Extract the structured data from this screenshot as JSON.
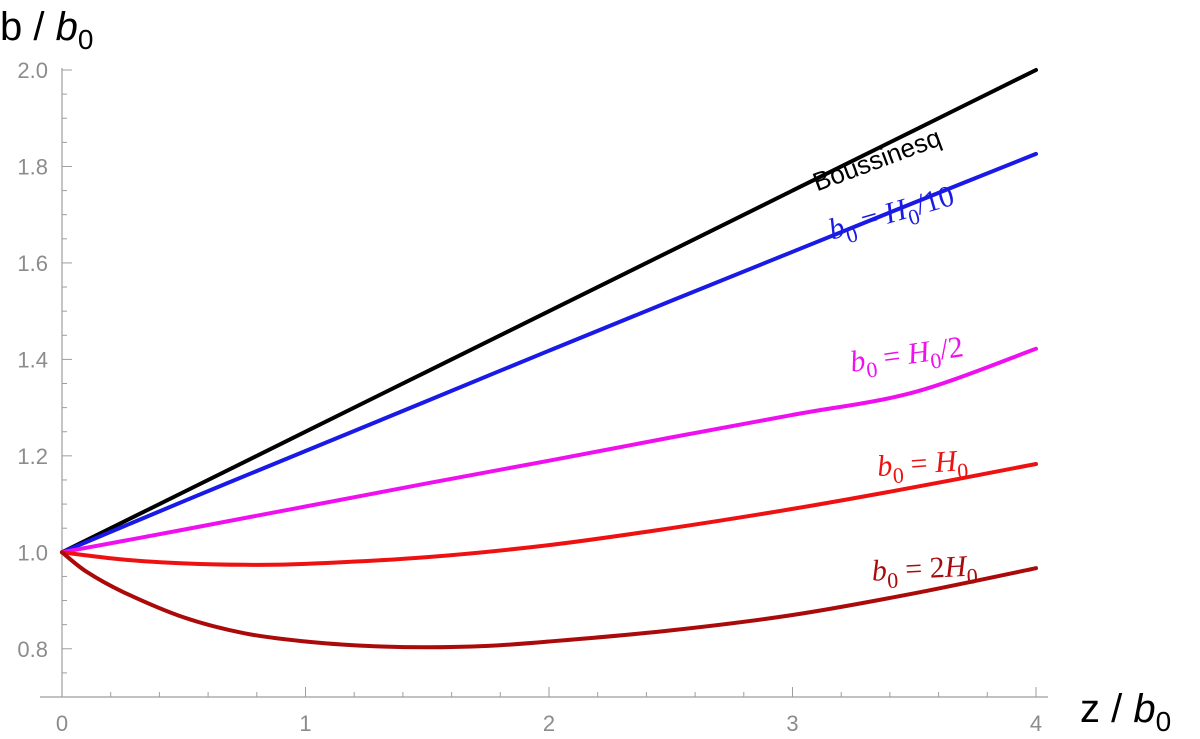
{
  "chart_data": {
    "type": "line",
    "xlabel": "z / b0",
    "ylabel": "b / b0",
    "xlim": [
      0,
      4
    ],
    "ylim": [
      0.7,
      2.0
    ],
    "x_ticks": [
      "0",
      "1",
      "2",
      "3",
      "4"
    ],
    "y_ticks": [
      "0.8",
      "1.0",
      "1.2",
      "1.4",
      "1.6",
      "1.8",
      "2.0"
    ],
    "grid": false,
    "series": [
      {
        "name": "Boussinesq",
        "color": "#000000",
        "points": [
          [
            0,
            1.0
          ],
          [
            0.5,
            1.125
          ],
          [
            1.0,
            1.25
          ],
          [
            1.5,
            1.375
          ],
          [
            2.0,
            1.5
          ],
          [
            2.5,
            1.625
          ],
          [
            3.0,
            1.75
          ],
          [
            3.5,
            1.875
          ],
          [
            4.0,
            2.0
          ]
        ]
      },
      {
        "name": "b0 = H0/10",
        "color": "#1a1ae6",
        "points": [
          [
            0,
            1.0
          ],
          [
            0.5,
            1.106
          ],
          [
            1.0,
            1.21
          ],
          [
            1.5,
            1.314
          ],
          [
            2.0,
            1.418
          ],
          [
            2.5,
            1.521
          ],
          [
            3.0,
            1.623
          ],
          [
            3.5,
            1.725
          ],
          [
            4.0,
            1.826
          ]
        ]
      },
      {
        "name": "b0 = H0/2",
        "color": "#ee10ee",
        "points": [
          [
            0,
            1.0
          ],
          [
            0.5,
            1.047
          ],
          [
            1.0,
            1.095
          ],
          [
            1.5,
            1.143
          ],
          [
            2.0,
            1.19
          ],
          [
            2.5,
            1.238
          ],
          [
            3.0,
            1.285
          ],
          [
            3.5,
            1.332
          ],
          [
            4.0,
            1.422
          ]
        ]
      },
      {
        "name": "b0 = H0",
        "color": "#ee1111",
        "points": [
          [
            0,
            1.0
          ],
          [
            0.25,
            0.985
          ],
          [
            0.5,
            0.977
          ],
          [
            0.75,
            0.974
          ],
          [
            1.0,
            0.976
          ],
          [
            1.5,
            0.99
          ],
          [
            2.0,
            1.015
          ],
          [
            2.5,
            1.05
          ],
          [
            3.0,
            1.09
          ],
          [
            3.5,
            1.135
          ],
          [
            4.0,
            1.183
          ]
        ]
      },
      {
        "name": "b0 = 2H0",
        "color": "#aa0a0a",
        "points": [
          [
            0,
            1.0
          ],
          [
            0.1,
            0.96
          ],
          [
            0.25,
            0.918
          ],
          [
            0.5,
            0.865
          ],
          [
            0.75,
            0.832
          ],
          [
            1.0,
            0.815
          ],
          [
            1.25,
            0.806
          ],
          [
            1.5,
            0.803
          ],
          [
            1.75,
            0.806
          ],
          [
            2.0,
            0.815
          ],
          [
            2.5,
            0.838
          ],
          [
            3.0,
            0.87
          ],
          [
            3.5,
            0.915
          ],
          [
            4.0,
            0.967
          ]
        ]
      }
    ],
    "annotations": [
      {
        "text": "Boussinesq"
      },
      {
        "base": "b",
        "sub": "0",
        "rest": " = ",
        "base2": "H",
        "sub2": "0",
        "tail": "/10"
      },
      {
        "base": "b",
        "sub": "0",
        "rest": " = ",
        "base2": "H",
        "sub2": "0",
        "tail": "/2"
      },
      {
        "base": "b",
        "sub": "0",
        "rest": " = ",
        "base2": "H",
        "sub2": "0",
        "tail": ""
      },
      {
        "base": "b",
        "sub": "0",
        "rest": " = 2",
        "base2": "H",
        "sub2": "0",
        "tail": ""
      }
    ]
  }
}
